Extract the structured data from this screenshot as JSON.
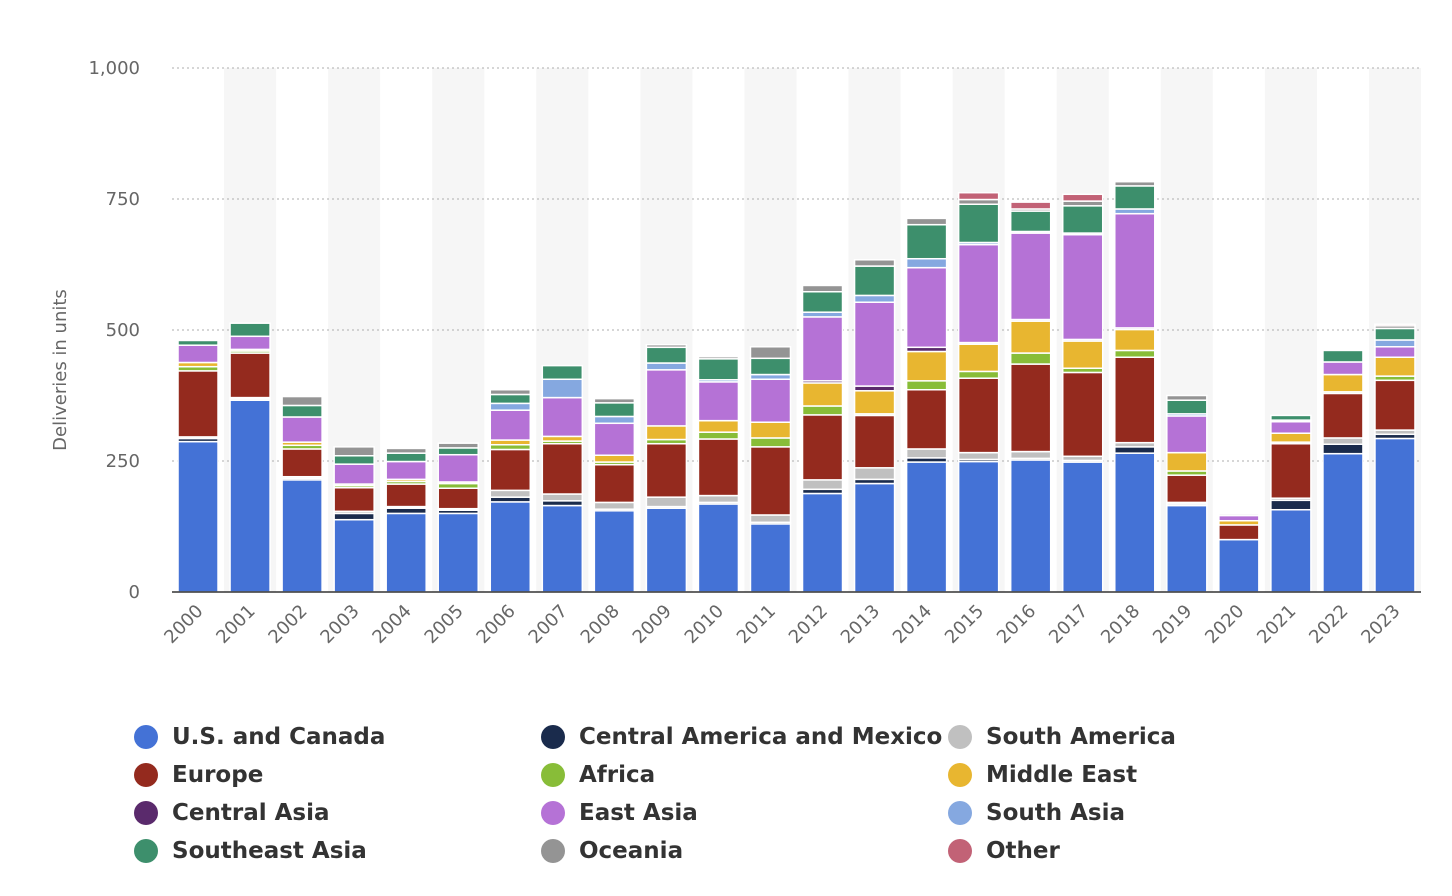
{
  "chart_data": {
    "type": "bar",
    "stacked": true,
    "title": "",
    "xlabel": "",
    "ylabel": "Deliveries in units",
    "ylim": [
      0,
      1000
    ],
    "yticks": [
      0,
      250,
      500,
      750,
      1000
    ],
    "ytick_labels": [
      "0",
      "250",
      "500",
      "750",
      "1,000"
    ],
    "grid": true,
    "legend_position": "bottom",
    "categories": [
      "2000",
      "2001",
      "2002",
      "2003",
      "2004",
      "2005",
      "2006",
      "2007",
      "2008",
      "2009",
      "2010",
      "2011",
      "2012",
      "2013",
      "2014",
      "2015",
      "2016",
      "2017",
      "2018",
      "2019",
      "2020",
      "2021",
      "2022",
      "2023"
    ],
    "series": [
      {
        "name": "U.S. and Canada",
        "color": "#4472D6",
        "values": [
          287,
          366,
          214,
          138,
          150,
          150,
          172,
          165,
          155,
          160,
          168,
          130,
          188,
          207,
          248,
          249,
          252,
          248,
          265,
          165,
          100,
          157,
          264,
          293
        ]
      },
      {
        "name": "Central America and Mexico",
        "color": "#1a2b4c",
        "values": [
          6,
          3,
          3,
          12,
          10,
          6,
          9,
          9,
          3,
          3,
          3,
          3,
          8,
          8,
          8,
          4,
          3,
          3,
          12,
          3,
          0,
          18,
          18,
          8
        ]
      },
      {
        "name": "South America",
        "color": "#c0c0c0",
        "values": [
          3,
          2,
          3,
          4,
          3,
          3,
          13,
          13,
          13,
          18,
          13,
          14,
          18,
          22,
          17,
          13,
          13,
          8,
          8,
          3,
          0,
          4,
          12,
          8
        ]
      },
      {
        "name": "Europe",
        "color": "#942a1e",
        "values": [
          126,
          85,
          53,
          45,
          43,
          39,
          78,
          96,
          72,
          102,
          108,
          130,
          124,
          100,
          113,
          142,
          167,
          160,
          163,
          52,
          28,
          104,
          85,
          95
        ]
      },
      {
        "name": "Africa",
        "color": "#88bd38",
        "values": [
          8,
          4,
          7,
          4,
          5,
          9,
          9,
          5,
          5,
          8,
          13,
          17,
          17,
          3,
          17,
          13,
          21,
          8,
          13,
          8,
          0,
          3,
          3,
          8
        ]
      },
      {
        "name": "Middle East",
        "color": "#e8b630",
        "values": [
          8,
          3,
          6,
          3,
          4,
          3,
          9,
          9,
          13,
          26,
          22,
          30,
          44,
          44,
          56,
          52,
          61,
          52,
          40,
          35,
          8,
          17,
          33,
          36
        ]
      },
      {
        "name": "Central Asia",
        "color": "#5a2a6c",
        "values": [
          0,
          0,
          0,
          0,
          0,
          0,
          0,
          0,
          0,
          0,
          0,
          0,
          4,
          9,
          8,
          3,
          3,
          3,
          3,
          0,
          0,
          0,
          0,
          0
        ]
      },
      {
        "name": "East Asia",
        "color": "#b572d6",
        "values": [
          33,
          25,
          48,
          38,
          34,
          52,
          57,
          74,
          61,
          107,
          74,
          82,
          122,
          160,
          152,
          187,
          165,
          200,
          218,
          70,
          10,
          22,
          24,
          20
        ]
      },
      {
        "name": "South Asia",
        "color": "#85a8e0",
        "values": [
          0,
          0,
          0,
          0,
          0,
          0,
          13,
          35,
          13,
          13,
          4,
          9,
          9,
          13,
          17,
          4,
          3,
          3,
          9,
          4,
          0,
          3,
          0,
          13
        ]
      },
      {
        "name": "Southeast Asia",
        "color": "#3d8f6c",
        "values": [
          9,
          25,
          22,
          16,
          16,
          13,
          17,
          26,
          26,
          30,
          40,
          31,
          39,
          56,
          65,
          73,
          39,
          52,
          44,
          26,
          0,
          9,
          22,
          22
        ]
      },
      {
        "name": "Oceania",
        "color": "#949494",
        "values": [
          0,
          0,
          17,
          17,
          9,
          9,
          9,
          0,
          8,
          5,
          4,
          22,
          12,
          12,
          12,
          9,
          4,
          9,
          8,
          9,
          3,
          0,
          0,
          5
        ]
      },
      {
        "name": "Other",
        "color": "#c26276",
        "values": [
          0,
          0,
          0,
          0,
          0,
          0,
          0,
          0,
          0,
          0,
          0,
          0,
          0,
          0,
          0,
          13,
          13,
          13,
          0,
          0,
          0,
          0,
          0,
          3
        ]
      }
    ]
  },
  "legend": {
    "items": [
      {
        "label": "U.S. and Canada",
        "color": "#4472D6"
      },
      {
        "label": "Central America and Mexico",
        "color": "#1a2b4c"
      },
      {
        "label": "South America",
        "color": "#c0c0c0"
      },
      {
        "label": "Europe",
        "color": "#942a1e"
      },
      {
        "label": "Africa",
        "color": "#88bd38"
      },
      {
        "label": "Middle East",
        "color": "#e8b630"
      },
      {
        "label": "Central Asia",
        "color": "#5a2a6c"
      },
      {
        "label": "East Asia",
        "color": "#b572d6"
      },
      {
        "label": "South Asia",
        "color": "#85a8e0"
      },
      {
        "label": "Southeast Asia",
        "color": "#3d8f6c"
      },
      {
        "label": "Oceania",
        "color": "#949494"
      },
      {
        "label": "Other",
        "color": "#c26276"
      }
    ]
  }
}
